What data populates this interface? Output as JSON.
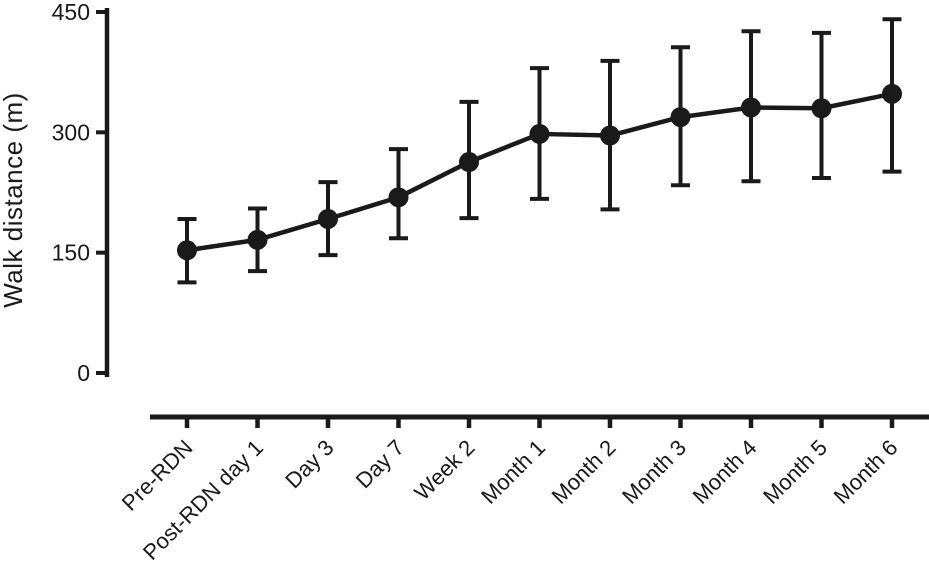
{
  "chart_data": {
    "type": "line",
    "title": "",
    "xlabel": "",
    "ylabel": "Walk distance (m)",
    "ylim": [
      0,
      450
    ],
    "yticks": [
      0,
      150,
      300,
      450
    ],
    "grid": false,
    "legend": "none",
    "marker": "filled-circle",
    "error_bars": true,
    "color": "#1a1a1a",
    "background": "#ffffff",
    "categories": [
      "Pre-RDN",
      "Post-RDN day 1",
      "Day 3",
      "Day 7",
      "Week 2",
      "Month 1",
      "Month 2",
      "Month 3",
      "Month 4",
      "Month 5",
      "Month 6"
    ],
    "series": [
      {
        "name": "Walk distance",
        "values": [
          153,
          166,
          192,
          219,
          263,
          298,
          296,
          319,
          331,
          330,
          348
        ],
        "error_low": [
          113,
          127,
          147,
          168,
          193,
          217,
          204,
          234,
          239,
          243,
          251
        ],
        "error_high": [
          192,
          205,
          238,
          279,
          338,
          380,
          389,
          406,
          426,
          424,
          441
        ]
      }
    ]
  }
}
